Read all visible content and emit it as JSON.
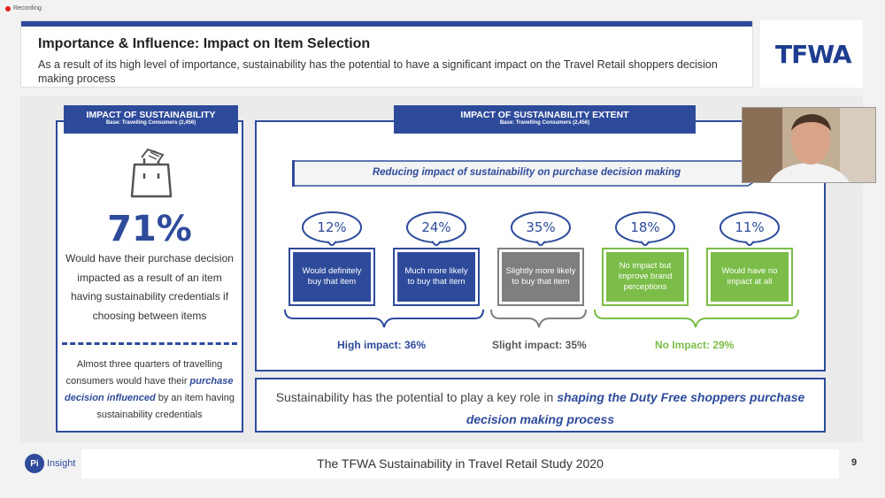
{
  "recording": {
    "label": "Recording"
  },
  "header": {
    "title": "Importance & Influence: Impact on Item Selection",
    "subtitle": "As a result of its high level of importance, sustainability has the potential to have a significant impact on the Travel Retail shoppers decision making process"
  },
  "logo": {
    "text": "TFWA"
  },
  "left_panel": {
    "tag_title": "IMPACT OF SUSTAINABILITY",
    "tag_base": "Base: Travelling Consumers (2,456)",
    "icon": "shopping-bag-icon",
    "big_percent": "71%",
    "description": "Would have their purchase decision impacted as a result of an item having sustainability credentials if choosing between items",
    "note_pre": "Almost three quarters of travelling consumers would have their ",
    "note_em": "purchase decision influenced",
    "note_post": " by an item having sustainability credentials"
  },
  "right_panel": {
    "tag_title": "IMPACT OF SUSTAINABILITY EXTENT",
    "tag_base": "Base: Travelling Consumers (2,456)",
    "arrow_label": "Reducing impact of sustainability on purchase decision making",
    "items": [
      {
        "percent": "12%",
        "label": "Would definitely buy that item"
      },
      {
        "percent": "24%",
        "label": "Much more likely to buy that item"
      },
      {
        "percent": "35%",
        "label": "Slightly more likely to buy that item"
      },
      {
        "percent": "18%",
        "label": "No impact but improve brand perceptions"
      },
      {
        "percent": "11%",
        "label": "Would have no impact at all"
      }
    ],
    "groups": [
      {
        "label": "High impact: 36%",
        "color": "#2e4b9b"
      },
      {
        "label": "Slight impact: 35%",
        "color": "#595959"
      },
      {
        "label": "No Impact: 29%",
        "color": "#7bbd48"
      }
    ]
  },
  "conclusion": {
    "pre": "Sustainability has the potential to play a key role in ",
    "em": "shaping the Duty Free shoppers purchase decision making process"
  },
  "footer": {
    "brand_initials": "Pi",
    "brand_text": "Insight",
    "title": "The TFWA Sustainability in Travel Retail Study 2020",
    "page": "9"
  },
  "colors": {
    "blue": "#2e4b9b",
    "grey": "#7f7f7f",
    "green": "#7bbd48"
  }
}
